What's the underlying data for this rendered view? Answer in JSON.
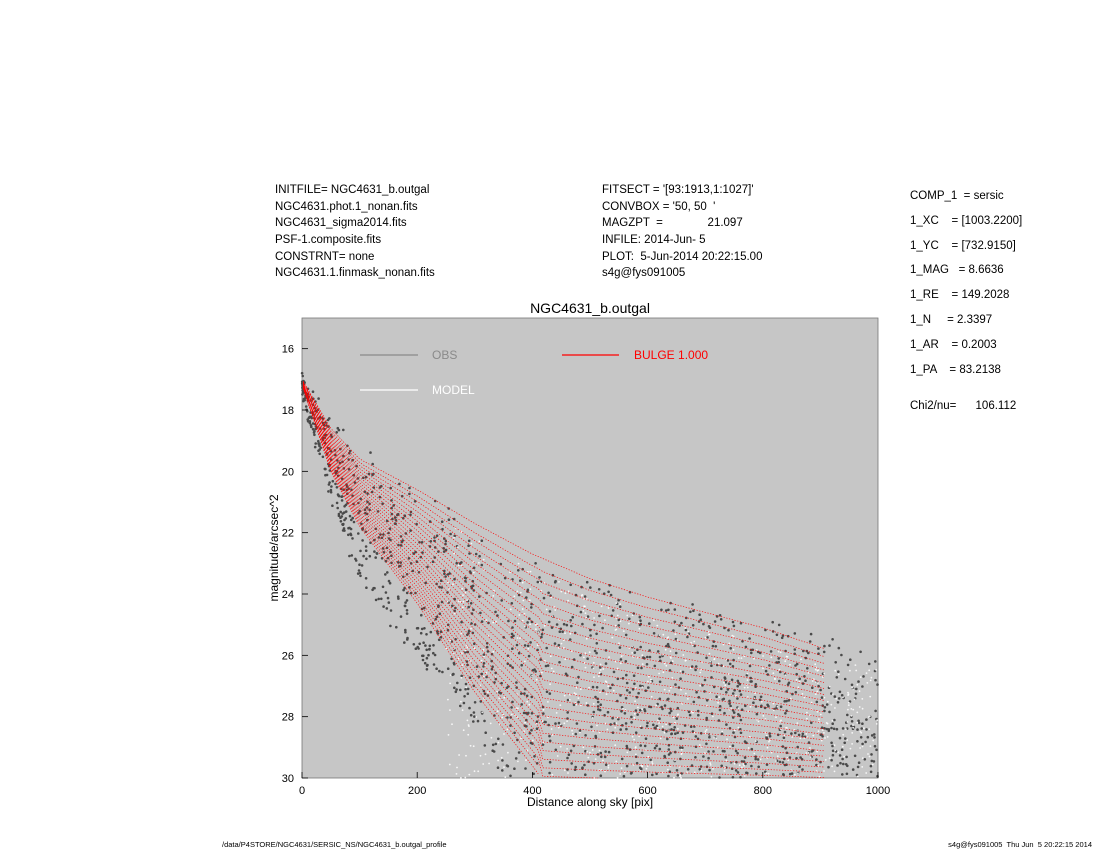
{
  "header_left": [
    "INITFILE= NGC4631_b.outgal",
    "NGC4631.phot.1_nonan.fits",
    "NGC4631_sigma2014.fits",
    "PSF-1.composite.fits",
    "CONSTRNT= none",
    "NGC4631.1.finmask_nonan.fits"
  ],
  "header_mid": [
    "FITSECT = '[93:1913,1:1027]'",
    "CONVBOX = '50, 50  '",
    "MAGZPT  =              21.097",
    "INFILE: 2014-Jun- 5",
    "PLOT:  5-Jun-2014 20:22:15.00",
    "s4g@fys091005"
  ],
  "params": [
    "COMP_1  = sersic",
    "1_XC    = [1003.2200]",
    "1_YC    = [732.9150]",
    "1_MAG   = 8.6636",
    "1_RE    = 149.2028",
    "1_N     = 2.3397",
    "1_AR    = 0.2003",
    "1_PA    = 83.2138"
  ],
  "chi2": "Chi2/nu=      106.112",
  "footer_left": "/data/P4STORE/NGC4631/SERSIC_NS/NGC4631_b.outgal_profile",
  "footer_right": "s4g@fys091005  Thu Jun  5 20:22:15 2014",
  "colors": {
    "plot_bg": "#c6c6c6",
    "obs": "#4a4a4a",
    "model": "#ffffff",
    "bulge": "#ff0000"
  },
  "chart_data": {
    "type": "scatter",
    "title": "NGC4631_b.outgal",
    "xlabel": "Distance along sky [pix]",
    "ylabel": "magnitude/arcsec^2",
    "xlim": [
      0,
      1000
    ],
    "ylim": [
      30,
      15
    ],
    "y_inverted": true,
    "xticks": [
      0,
      200,
      400,
      600,
      800,
      1000
    ],
    "yticks": [
      16,
      18,
      20,
      22,
      24,
      26,
      28,
      30
    ],
    "legend": [
      {
        "name": "OBS",
        "color": "#8a8a8a"
      },
      {
        "name": "MODEL",
        "color": "#ffffff"
      },
      {
        "name": "BULGE  1.000",
        "color": "#ff0000"
      }
    ],
    "series": [
      {
        "name": "OBS",
        "description_points": "dense gray scatter",
        "upper_envelope": [
          [
            0,
            17.0
          ],
          [
            50,
            18.3
          ],
          [
            100,
            19.3
          ],
          [
            150,
            20.0
          ],
          [
            200,
            20.6
          ],
          [
            300,
            21.8
          ],
          [
            400,
            22.8
          ],
          [
            500,
            23.6
          ],
          [
            600,
            24.1
          ],
          [
            700,
            24.5
          ],
          [
            800,
            24.9
          ],
          [
            900,
            25.3
          ],
          [
            1000,
            25.8
          ]
        ],
        "lower_envelope": [
          [
            0,
            17.5
          ],
          [
            50,
            21.0
          ],
          [
            100,
            23.5
          ],
          [
            150,
            24.8
          ],
          [
            200,
            26.0
          ],
          [
            300,
            28.5
          ],
          [
            340,
            30.0
          ]
        ]
      },
      {
        "name": "BULGE  1.000",
        "upper_envelope": [
          [
            0,
            17.0
          ],
          [
            50,
            18.6
          ],
          [
            100,
            19.6
          ],
          [
            200,
            20.6
          ],
          [
            300,
            21.7
          ],
          [
            400,
            22.7
          ],
          [
            500,
            23.5
          ],
          [
            600,
            24.1
          ],
          [
            700,
            24.6
          ],
          [
            800,
            25.1
          ],
          [
            910,
            25.8
          ]
        ],
        "lower_envelope": [
          [
            0,
            17.2
          ],
          [
            50,
            20.0
          ],
          [
            100,
            21.8
          ],
          [
            200,
            24.3
          ],
          [
            300,
            27.2
          ],
          [
            400,
            29.6
          ],
          [
            415,
            30.0
          ]
        ]
      }
    ]
  }
}
